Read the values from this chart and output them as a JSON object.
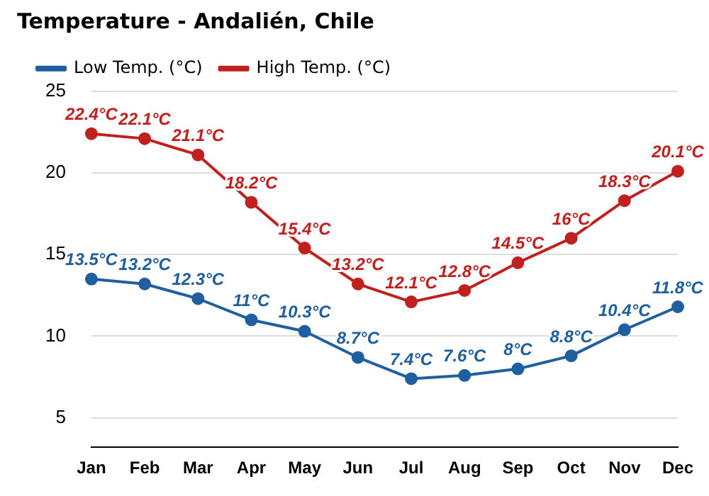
{
  "chart_data": {
    "type": "line",
    "title": "Temperature - Andalién, Chile",
    "categories": [
      "Jan",
      "Feb",
      "Mar",
      "Apr",
      "May",
      "Jun",
      "Jul",
      "Aug",
      "Sep",
      "Oct",
      "Nov",
      "Dec"
    ],
    "series": [
      {
        "name": "Low Temp. (°C)",
        "color": "#1f5fa0",
        "values": [
          13.5,
          13.2,
          12.3,
          11,
          10.3,
          8.7,
          7.4,
          7.6,
          8,
          8.8,
          10.4,
          11.8
        ],
        "value_labels": [
          "13.5°C",
          "13.2°C",
          "12.3°C",
          "11°C",
          "10.3°C",
          "8.7°C",
          "7.4°C",
          "7.6°C",
          "8°C",
          "8.8°C",
          "10.4°C",
          "11.8°C"
        ]
      },
      {
        "name": "High Temp. (°C)",
        "color": "#c0201e",
        "values": [
          22.4,
          22.1,
          21.1,
          18.2,
          15.4,
          13.2,
          12.1,
          12.8,
          14.5,
          16,
          18.3,
          20.1
        ],
        "value_labels": [
          "22.4°C",
          "22.1°C",
          "21.1°C",
          "18.2°C",
          "15.4°C",
          "13.2°C",
          "12.1°C",
          "12.8°C",
          "14.5°C",
          "16°C",
          "18.3°C",
          "20.1°C"
        ]
      }
    ],
    "ylim": [
      3.2,
      25
    ],
    "yticks": [
      5,
      10,
      15,
      20,
      25
    ],
    "grid": "y",
    "legend": "top left",
    "marker": "circle",
    "line_style": "solid"
  }
}
